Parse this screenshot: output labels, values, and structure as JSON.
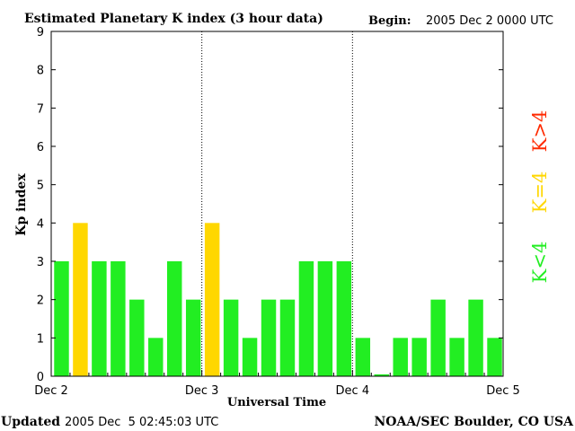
{
  "header": {
    "title": "Estimated Planetary K index (3 hour data)",
    "begin_label": "Begin:",
    "begin_value": "2005 Dec 2 0000 UTC"
  },
  "footer": {
    "updated_label": "Updated",
    "updated_value": "2005 Dec  5 02:45:03 UTC",
    "credit": "NOAA/SEC Boulder, CO USA"
  },
  "legend": [
    {
      "label": "K>4",
      "color": "#ff2a00"
    },
    {
      "label": "K=4",
      "color": "#ffd700"
    },
    {
      "label": "K<4",
      "color": "#22ee22"
    }
  ],
  "colors": {
    "below4": "#22ee22",
    "equal4": "#ffd700",
    "above4": "#ff2a00",
    "axis": "#000000"
  },
  "chart_data": {
    "type": "bar",
    "title": "Estimated Planetary K index (3 hour data)",
    "xlabel": "Universal Time",
    "ylabel": "Kp index",
    "ylim": [
      0,
      9
    ],
    "yticks": [
      "0",
      "1",
      "2",
      "3",
      "4",
      "5",
      "6",
      "7",
      "8",
      "9"
    ],
    "day_labels": [
      "Dec 2",
      "Dec 3",
      "Dec 4",
      "Dec 5"
    ],
    "interval_hours": 3,
    "values": [
      3,
      4,
      3,
      3,
      2,
      1,
      3,
      2,
      4,
      2,
      1,
      2,
      2,
      3,
      3,
      3,
      1,
      0.05,
      1,
      1,
      2,
      1,
      2,
      1
    ],
    "grid": false,
    "day_separators": "dotted"
  }
}
